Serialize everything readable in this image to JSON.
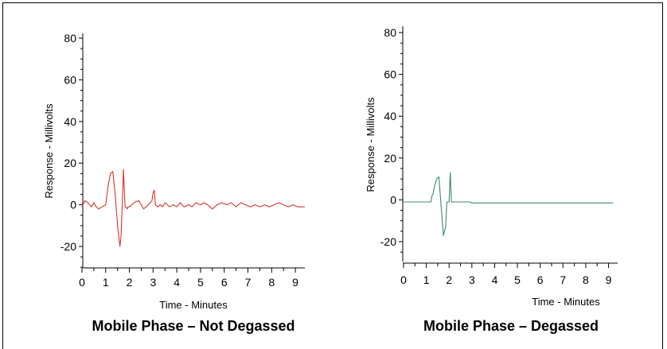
{
  "chart_data": [
    {
      "type": "line",
      "title": "Mobile Phase – Not Degassed",
      "xlabel": "Time - Minutes",
      "ylabel": "Response - Millivolts",
      "xlim": [
        0,
        9.4
      ],
      "ylim": [
        -30,
        85
      ],
      "xticks": [
        0,
        1,
        2,
        3,
        4,
        5,
        6,
        7,
        8,
        9
      ],
      "yticks": [
        -20,
        0,
        20,
        40,
        60,
        80
      ],
      "grid": false,
      "color": "#d9362b",
      "series": [
        {
          "x": [
            0,
            0.12,
            0.25,
            0.4,
            0.5,
            0.55,
            0.6,
            0.7,
            0.85,
            1.0,
            1.1,
            1.15,
            1.2,
            1.3,
            1.4,
            1.5,
            1.6,
            1.65,
            1.7,
            1.75,
            1.8,
            1.82,
            1.85,
            1.9,
            1.95,
            2.0,
            2.2,
            2.4,
            2.5,
            2.6,
            2.8,
            2.95,
            3.0,
            3.05,
            3.1,
            3.2,
            3.3,
            3.4,
            3.5,
            3.7,
            3.85,
            4.0,
            4.15,
            4.3,
            4.5,
            4.65,
            4.8,
            5.0,
            5.15,
            5.3,
            5.5,
            5.7,
            5.9,
            6.1,
            6.3,
            6.5,
            6.7,
            6.9,
            7.1,
            7.3,
            7.5,
            7.7,
            7.9,
            8.1,
            8.3,
            8.5,
            8.7,
            8.9,
            9.1,
            9.25,
            9.4
          ],
          "y": [
            -1,
            2,
            1,
            -1,
            1,
            0,
            -1,
            -2,
            -1,
            0,
            9,
            12,
            15,
            16,
            5,
            -10,
            -20,
            -15,
            0,
            17,
            3,
            -1,
            -1,
            -2,
            -1,
            -1,
            1,
            2,
            0,
            -2,
            0,
            2,
            6,
            7,
            0,
            -1,
            0,
            -1,
            1,
            -1,
            0,
            -1,
            1,
            -1,
            0,
            -1,
            1,
            0,
            1,
            0,
            -2,
            0,
            1,
            0,
            1,
            -1,
            1,
            0,
            -1,
            0,
            -1,
            0,
            -1,
            0,
            1,
            0,
            -1,
            0,
            -1,
            -1,
            -1
          ]
        }
      ]
    },
    {
      "type": "line",
      "title": "Mobile Phase – Degassed",
      "xlabel": "Time - Minutes",
      "ylabel": "Response - Millivolts",
      "xlim": [
        0,
        9.4
      ],
      "ylim": [
        -30,
        85
      ],
      "xticks": [
        0,
        1,
        2,
        3,
        4,
        5,
        6,
        7,
        8,
        9
      ],
      "yticks": [
        -20,
        0,
        20,
        40,
        60,
        80
      ],
      "grid": false,
      "color": "#3a8a6c",
      "series": [
        {
          "x": [
            0,
            1.2,
            1.25,
            1.3,
            1.35,
            1.45,
            1.55,
            1.65,
            1.75,
            1.85,
            1.9,
            2.0,
            2.05,
            2.1,
            2.2,
            2.9,
            3.0,
            9.2
          ],
          "y": [
            -1,
            -1,
            2,
            3,
            6,
            10,
            11,
            -3,
            -17,
            -13,
            -1,
            -1,
            13,
            -1,
            -1,
            -1,
            -1.5,
            -1.5
          ]
        }
      ]
    }
  ]
}
